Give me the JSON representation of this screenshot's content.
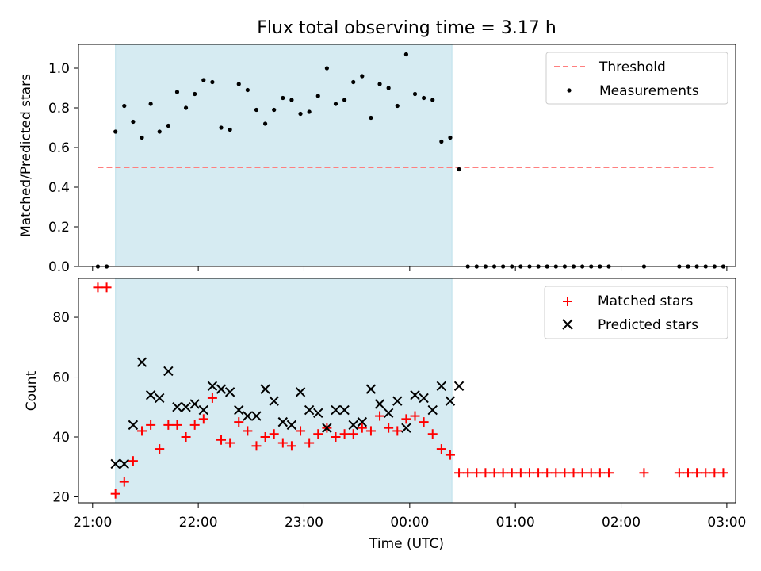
{
  "title": "Flux total observing time = 3.17 h",
  "colors": {
    "shade": "#add8e6",
    "threshold": "#ff7f7f",
    "measurements": "#000000",
    "matched": "#ff0000",
    "predicted": "#000000"
  },
  "chart_data": [
    {
      "type": "scatter",
      "panel": "top",
      "title": "Flux total observing time = 3.17 h",
      "xlabel": "",
      "ylabel": "Matched/Predicted stars",
      "xlim": [
        "20:52",
        "03:05"
      ],
      "ylim": [
        0,
        1.12
      ],
      "x_ticks": [
        "21:00",
        "22:00",
        "23:00",
        "00:00",
        "01:00",
        "02:00",
        "03:00"
      ],
      "x_tick_labels_visible": false,
      "y_ticks": [
        0.0,
        0.2,
        0.4,
        0.6,
        0.8,
        1.0
      ],
      "y_tick_labels": [
        "0.0",
        "0.2",
        "0.4",
        "0.6",
        "0.8",
        "1.0"
      ],
      "shaded_interval": [
        "21:13",
        "00:24"
      ],
      "legend": {
        "placement": "top-right",
        "entries": [
          "Threshold",
          "Measurements"
        ]
      },
      "threshold": {
        "name": "Threshold",
        "y": 0.5,
        "x_start": "21:03",
        "x_end": "02:54",
        "style": "dashed"
      },
      "series": [
        {
          "name": "Measurements",
          "points": [
            [
              "21:03",
              0.0
            ],
            [
              "21:08",
              0.0
            ],
            [
              "21:13",
              0.68
            ],
            [
              "21:18",
              0.81
            ],
            [
              "21:23",
              0.73
            ],
            [
              "21:28",
              0.65
            ],
            [
              "21:33",
              0.82
            ],
            [
              "21:38",
              0.68
            ],
            [
              "21:43",
              0.71
            ],
            [
              "21:48",
              0.88
            ],
            [
              "21:53",
              0.8
            ],
            [
              "21:58",
              0.87
            ],
            [
              "22:03",
              0.94
            ],
            [
              "22:08",
              0.93
            ],
            [
              "22:13",
              0.7
            ],
            [
              "22:18",
              0.69
            ],
            [
              "22:23",
              0.92
            ],
            [
              "22:28",
              0.89
            ],
            [
              "22:33",
              0.79
            ],
            [
              "22:38",
              0.72
            ],
            [
              "22:43",
              0.79
            ],
            [
              "22:48",
              0.85
            ],
            [
              "22:53",
              0.84
            ],
            [
              "22:58",
              0.77
            ],
            [
              "23:03",
              0.78
            ],
            [
              "23:08",
              0.86
            ],
            [
              "23:13",
              1.0
            ],
            [
              "23:18",
              0.82
            ],
            [
              "23:23",
              0.84
            ],
            [
              "23:28",
              0.93
            ],
            [
              "23:33",
              0.96
            ],
            [
              "23:38",
              0.75
            ],
            [
              "23:43",
              0.92
            ],
            [
              "23:48",
              0.9
            ],
            [
              "23:53",
              0.81
            ],
            [
              "23:58",
              1.07
            ],
            [
              "00:03",
              0.87
            ],
            [
              "00:08",
              0.85
            ],
            [
              "00:13",
              0.84
            ],
            [
              "00:18",
              0.63
            ],
            [
              "00:23",
              0.65
            ],
            [
              "00:28",
              0.49
            ],
            [
              "00:33",
              0.0
            ],
            [
              "00:38",
              0.0
            ],
            [
              "00:43",
              0.0
            ],
            [
              "00:48",
              0.0
            ],
            [
              "00:53",
              0.0
            ],
            [
              "00:58",
              0.0
            ],
            [
              "01:03",
              0.0
            ],
            [
              "01:08",
              0.0
            ],
            [
              "01:13",
              0.0
            ],
            [
              "01:18",
              0.0
            ],
            [
              "01:23",
              0.0
            ],
            [
              "01:28",
              0.0
            ],
            [
              "01:33",
              0.0
            ],
            [
              "01:38",
              0.0
            ],
            [
              "01:43",
              0.0
            ],
            [
              "01:48",
              0.0
            ],
            [
              "01:53",
              0.0
            ],
            [
              "02:13",
              0.0
            ],
            [
              "02:33",
              0.0
            ],
            [
              "02:38",
              0.0
            ],
            [
              "02:43",
              0.0
            ],
            [
              "02:48",
              0.0
            ],
            [
              "02:53",
              0.0
            ],
            [
              "02:58",
              0.0
            ]
          ]
        }
      ]
    },
    {
      "type": "scatter",
      "panel": "bottom",
      "xlabel": "Time (UTC)",
      "ylabel": "Count",
      "xlim": [
        "20:52",
        "03:05"
      ],
      "ylim": [
        18,
        93
      ],
      "x_ticks": [
        "21:00",
        "22:00",
        "23:00",
        "00:00",
        "01:00",
        "02:00",
        "03:00"
      ],
      "x_tick_labels": [
        "21:00",
        "22:00",
        "23:00",
        "00:00",
        "01:00",
        "02:00",
        "03:00"
      ],
      "y_ticks": [
        20,
        40,
        60,
        80
      ],
      "y_tick_labels": [
        "20",
        "40",
        "60",
        "80"
      ],
      "shaded_interval": [
        "21:13",
        "00:24"
      ],
      "legend": {
        "placement": "top-right",
        "entries": [
          "Matched stars",
          "Predicted stars"
        ]
      },
      "series": [
        {
          "name": "Matched stars",
          "marker": "plus",
          "points": [
            [
              "21:03",
              90
            ],
            [
              "21:08",
              90
            ],
            [
              "21:13",
              21
            ],
            [
              "21:18",
              25
            ],
            [
              "21:23",
              32
            ],
            [
              "21:28",
              42
            ],
            [
              "21:33",
              44
            ],
            [
              "21:38",
              36
            ],
            [
              "21:43",
              44
            ],
            [
              "21:48",
              44
            ],
            [
              "21:53",
              40
            ],
            [
              "21:58",
              44
            ],
            [
              "22:03",
              46
            ],
            [
              "22:08",
              53
            ],
            [
              "22:13",
              39
            ],
            [
              "22:18",
              38
            ],
            [
              "22:23",
              45
            ],
            [
              "22:28",
              42
            ],
            [
              "22:33",
              37
            ],
            [
              "22:38",
              40
            ],
            [
              "22:43",
              41
            ],
            [
              "22:48",
              38
            ],
            [
              "22:53",
              37
            ],
            [
              "22:58",
              42
            ],
            [
              "23:03",
              38
            ],
            [
              "23:08",
              41
            ],
            [
              "23:13",
              43
            ],
            [
              "23:18",
              40
            ],
            [
              "23:23",
              41
            ],
            [
              "23:28",
              41
            ],
            [
              "23:33",
              43
            ],
            [
              "23:38",
              42
            ],
            [
              "23:43",
              47
            ],
            [
              "23:48",
              43
            ],
            [
              "23:53",
              42
            ],
            [
              "23:58",
              46
            ],
            [
              "00:03",
              47
            ],
            [
              "00:08",
              45
            ],
            [
              "00:13",
              41
            ],
            [
              "00:18",
              36
            ],
            [
              "00:23",
              34
            ],
            [
              "00:28",
              28
            ],
            [
              "00:33",
              28
            ],
            [
              "00:38",
              28
            ],
            [
              "00:43",
              28
            ],
            [
              "00:48",
              28
            ],
            [
              "00:53",
              28
            ],
            [
              "00:58",
              28
            ],
            [
              "01:03",
              28
            ],
            [
              "01:08",
              28
            ],
            [
              "01:13",
              28
            ],
            [
              "01:18",
              28
            ],
            [
              "01:23",
              28
            ],
            [
              "01:28",
              28
            ],
            [
              "01:33",
              28
            ],
            [
              "01:38",
              28
            ],
            [
              "01:43",
              28
            ],
            [
              "01:48",
              28
            ],
            [
              "01:53",
              28
            ],
            [
              "02:13",
              28
            ],
            [
              "02:33",
              28
            ],
            [
              "02:38",
              28
            ],
            [
              "02:43",
              28
            ],
            [
              "02:48",
              28
            ],
            [
              "02:53",
              28
            ],
            [
              "02:58",
              28
            ]
          ]
        },
        {
          "name": "Predicted stars",
          "marker": "x",
          "points": [
            [
              "21:13",
              31
            ],
            [
              "21:18",
              31
            ],
            [
              "21:23",
              44
            ],
            [
              "21:28",
              65
            ],
            [
              "21:33",
              54
            ],
            [
              "21:38",
              53
            ],
            [
              "21:43",
              62
            ],
            [
              "21:48",
              50
            ],
            [
              "21:53",
              50
            ],
            [
              "21:58",
              51
            ],
            [
              "22:03",
              49
            ],
            [
              "22:08",
              57
            ],
            [
              "22:13",
              56
            ],
            [
              "22:18",
              55
            ],
            [
              "22:23",
              49
            ],
            [
              "22:28",
              47
            ],
            [
              "22:33",
              47
            ],
            [
              "22:38",
              56
            ],
            [
              "22:43",
              52
            ],
            [
              "22:48",
              45
            ],
            [
              "22:53",
              44
            ],
            [
              "22:58",
              55
            ],
            [
              "23:03",
              49
            ],
            [
              "23:08",
              48
            ],
            [
              "23:13",
              43
            ],
            [
              "23:18",
              49
            ],
            [
              "23:23",
              49
            ],
            [
              "23:28",
              44
            ],
            [
              "23:33",
              45
            ],
            [
              "23:38",
              56
            ],
            [
              "23:43",
              51
            ],
            [
              "23:48",
              48
            ],
            [
              "23:53",
              52
            ],
            [
              "23:58",
              43
            ],
            [
              "00:03",
              54
            ],
            [
              "00:08",
              53
            ],
            [
              "00:13",
              49
            ],
            [
              "00:18",
              57
            ],
            [
              "00:23",
              52
            ],
            [
              "00:28",
              57
            ]
          ]
        }
      ]
    }
  ]
}
